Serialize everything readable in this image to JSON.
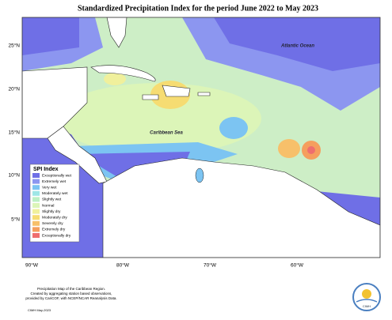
{
  "title": "Standardized Precipitation Index for the period June 2022 to May 2023",
  "map": {
    "lon_labels": [
      "90°W",
      "80°W",
      "70°W",
      "60°W"
    ],
    "lat_labels": [
      "25°N",
      "20°N",
      "15°N",
      "10°N",
      "5°N"
    ],
    "places": [
      "Atlantic Ocean",
      "Caribbean Sea"
    ]
  },
  "legend": {
    "title": "SPI Index",
    "items": [
      {
        "label": "Exceptionally wet",
        "color": "#6f6fe6"
      },
      {
        "label": "Extremely wet",
        "color": "#8c96f0"
      },
      {
        "label": "Very wet",
        "color": "#7cc4f2"
      },
      {
        "label": "Moderately wet",
        "color": "#9ee6e6"
      },
      {
        "label": "Slightly wet",
        "color": "#bdf0c4"
      },
      {
        "label": "Normal",
        "color": "#dcf5b8"
      },
      {
        "label": "Slightly dry",
        "color": "#f0f09c"
      },
      {
        "label": "Moderately dry",
        "color": "#f6dc72"
      },
      {
        "label": "Severely dry",
        "color": "#f7c06a"
      },
      {
        "label": "Extremely dry",
        "color": "#f59e5e"
      },
      {
        "label": "Exceptionally dry",
        "color": "#ee6e6e"
      }
    ]
  },
  "footer": {
    "lines": [
      "Precipitation Map of the Caribbean Region.",
      "Created by aggregating station based observations,",
      "provided by CariCOF, with NCEP/NCAR Reanalysis Data."
    ],
    "credit": "CIMH May-2023"
  },
  "logo": "CIMH"
}
